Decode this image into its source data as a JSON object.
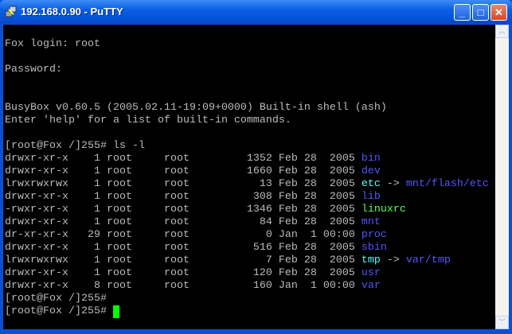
{
  "window": {
    "title": "192.168.0.90 - PuTTY",
    "minimize": "_",
    "maximize": "□",
    "close": "✕"
  },
  "colors": {
    "text": "#bbbbbb",
    "dir": "#5555ff",
    "link": "#55ffff",
    "exec": "#55ff55",
    "cursor": "#00ff00"
  },
  "terminal": {
    "lines": [
      [],
      [
        {
          "t": "Fox login: root"
        }
      ],
      [],
      [
        {
          "t": "Password:"
        }
      ],
      [],
      [],
      [
        {
          "t": "BusyBox v0.60.5 (2005.02.11-19:09+0000) Built-in shell (ash)"
        }
      ],
      [
        {
          "t": "Enter 'help' for a list of built-in commands."
        }
      ],
      [],
      [
        {
          "t": "[root@Fox /]255# ls -l"
        }
      ],
      [
        {
          "t": "drwxr-xr-x    1 root     root         1352 Feb 28  2005 "
        },
        {
          "t": "bin",
          "c": "dir"
        }
      ],
      [
        {
          "t": "drwxr-xr-x    1 root     root         1660 Feb 28  2005 "
        },
        {
          "t": "dev",
          "c": "dir"
        }
      ],
      [
        {
          "t": "lrwxrwxrwx    1 root     root           13 Feb 28  2005 "
        },
        {
          "t": "etc",
          "c": "link"
        },
        {
          "t": " -> "
        },
        {
          "t": "mnt/flash/etc",
          "c": "dir"
        }
      ],
      [
        {
          "t": "drwxr-xr-x    1 root     root          308 Feb 28  2005 "
        },
        {
          "t": "lib",
          "c": "dir"
        }
      ],
      [
        {
          "t": "-rwxr-xr-x    1 root     root         1346 Feb 28  2005 "
        },
        {
          "t": "linuxrc",
          "c": "exec"
        }
      ],
      [
        {
          "t": "drwxr-xr-x    1 root     root           84 Feb 28  2005 "
        },
        {
          "t": "mnt",
          "c": "dir"
        }
      ],
      [
        {
          "t": "dr-xr-xr-x   29 root     root            0 Jan  1 00:00 "
        },
        {
          "t": "proc",
          "c": "dir"
        }
      ],
      [
        {
          "t": "drwxr-xr-x    1 root     root          516 Feb 28  2005 "
        },
        {
          "t": "sbin",
          "c": "dir"
        }
      ],
      [
        {
          "t": "lrwxrwxrwx    1 root     root            7 Feb 28  2005 "
        },
        {
          "t": "tmp",
          "c": "link"
        },
        {
          "t": " -> "
        },
        {
          "t": "var/tmp",
          "c": "dir"
        }
      ],
      [
        {
          "t": "drwxr-xr-x    1 root     root          120 Feb 28  2005 "
        },
        {
          "t": "usr",
          "c": "dir"
        }
      ],
      [
        {
          "t": "drwxr-xr-x    8 root     root          160 Jan  1 00:00 "
        },
        {
          "t": "var",
          "c": "dir"
        }
      ],
      [
        {
          "t": "[root@Fox /]255#"
        }
      ],
      [
        {
          "t": "[root@Fox /]255# "
        },
        {
          "cursor": true
        }
      ]
    ]
  },
  "scrollbar": {
    "up": "︿",
    "down": "﹀"
  }
}
